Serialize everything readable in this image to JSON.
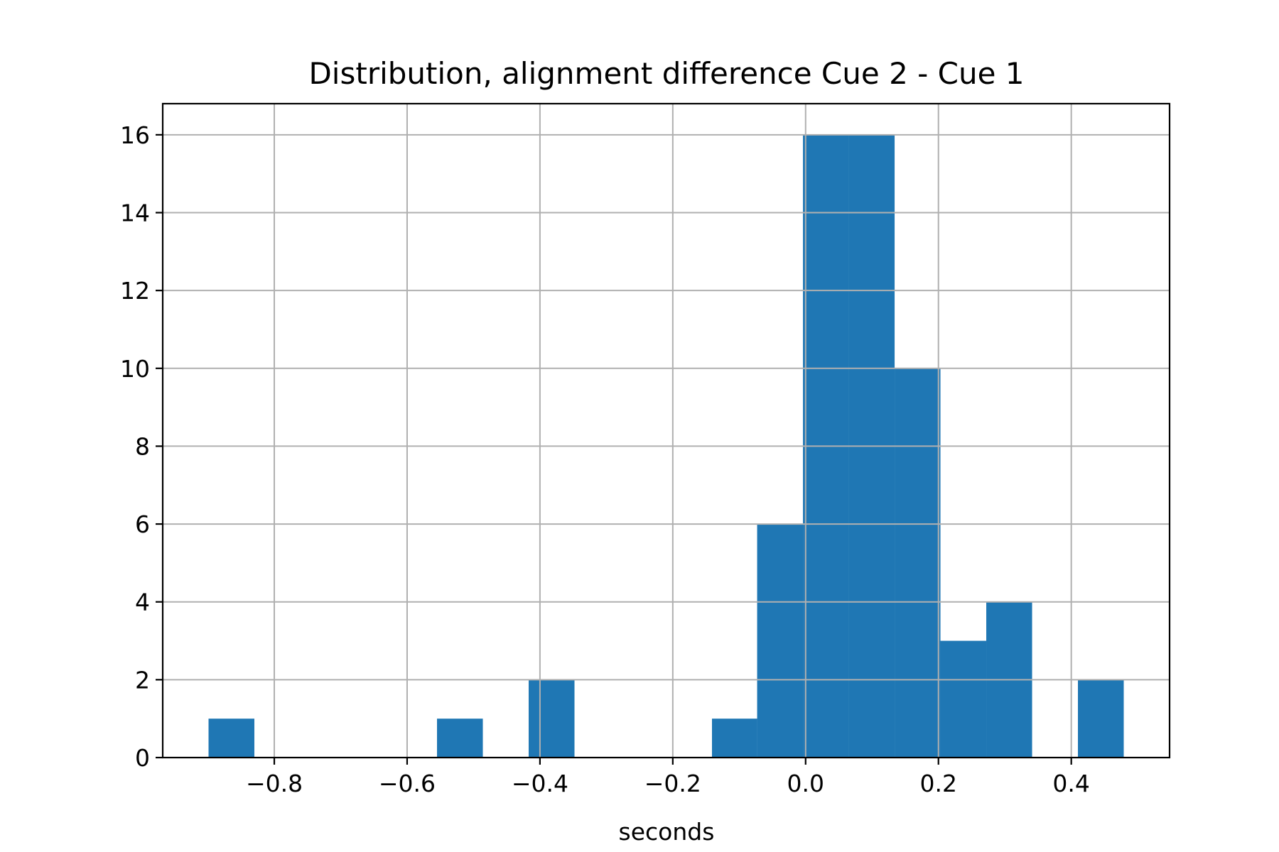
{
  "chart_data": {
    "type": "bar",
    "title": "Distribution, alignment difference Cue 2 - Cue 1",
    "xlabel": "seconds",
    "ylabel": "",
    "bar_color": "#1f77b4",
    "grid": true,
    "xlim": [
      -0.968,
      0.548
    ],
    "ylim": [
      0,
      16.8
    ],
    "xticks": [
      -0.8,
      -0.6,
      -0.4,
      -0.2,
      0.0,
      0.2,
      0.4
    ],
    "xtick_labels": [
      "−0.8",
      "−0.6",
      "−0.4",
      "−0.2",
      "0.0",
      "0.2",
      "0.4"
    ],
    "yticks": [
      0,
      2,
      4,
      6,
      8,
      10,
      12,
      14,
      16
    ],
    "ytick_labels": [
      "0",
      "2",
      "4",
      "6",
      "8",
      "10",
      "12",
      "14",
      "16"
    ],
    "bins": [
      {
        "x0": -0.899,
        "x1": -0.83,
        "count": 1
      },
      {
        "x0": -0.83,
        "x1": -0.761,
        "count": 0
      },
      {
        "x0": -0.761,
        "x1": -0.692,
        "count": 0
      },
      {
        "x0": -0.692,
        "x1": -0.624,
        "count": 0
      },
      {
        "x0": -0.624,
        "x1": -0.555,
        "count": 0
      },
      {
        "x0": -0.555,
        "x1": -0.486,
        "count": 1
      },
      {
        "x0": -0.486,
        "x1": -0.417,
        "count": 0
      },
      {
        "x0": -0.417,
        "x1": -0.348,
        "count": 2
      },
      {
        "x0": -0.348,
        "x1": -0.279,
        "count": 0
      },
      {
        "x0": -0.279,
        "x1": -0.21,
        "count": 0
      },
      {
        "x0": -0.21,
        "x1": -0.141,
        "count": 0
      },
      {
        "x0": -0.141,
        "x1": -0.073,
        "count": 1
      },
      {
        "x0": -0.073,
        "x1": -0.004,
        "count": 6
      },
      {
        "x0": -0.004,
        "x1": 0.065,
        "count": 16
      },
      {
        "x0": 0.065,
        "x1": 0.134,
        "count": 16
      },
      {
        "x0": 0.134,
        "x1": 0.203,
        "count": 10
      },
      {
        "x0": 0.203,
        "x1": 0.272,
        "count": 3
      },
      {
        "x0": 0.272,
        "x1": 0.341,
        "count": 4
      },
      {
        "x0": 0.341,
        "x1": 0.41,
        "count": 0
      },
      {
        "x0": 0.41,
        "x1": 0.479,
        "count": 2
      }
    ]
  }
}
